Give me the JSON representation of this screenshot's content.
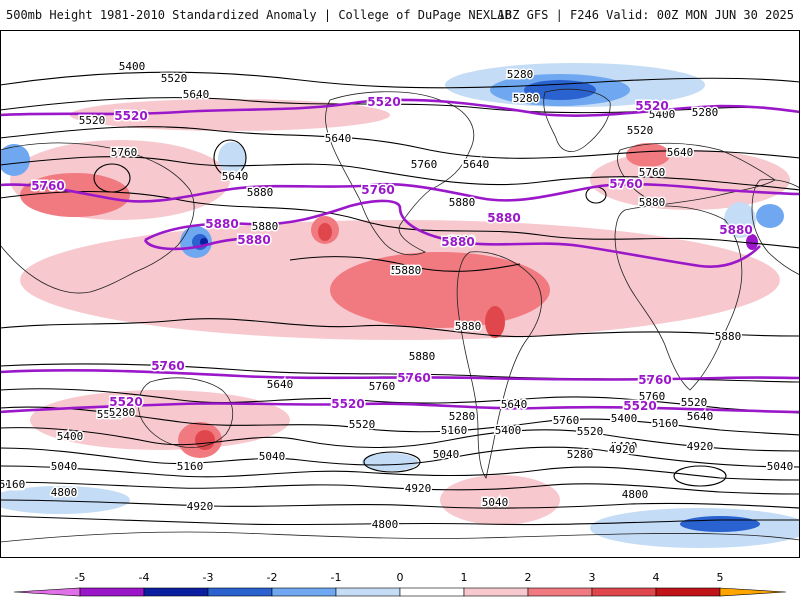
{
  "header": {
    "title": "500mb Height 1981-2010 Standardized Anomaly | College of DuPage NEXLAB",
    "run_info": "18Z GFS | F246 Valid: 00Z MON JUN 30 2025"
  },
  "colors": {
    "pos1": "#f7c9cf",
    "pos2": "#f07a80",
    "pos3": "#e0474c",
    "pos4": "#c01418",
    "pos5": "#ffa500",
    "neg1": "#c4dcf5",
    "neg2": "#6fa8f0",
    "neg3": "#2a62d0",
    "neg4": "#0a1fa0",
    "neg5": "#9a16c8",
    "highlight_contour": "#9a18c9",
    "height_contour": "#000000"
  },
  "contour_labels": [
    {
      "text": "5400"
    },
    {
      "text": "5520"
    },
    {
      "text": "5640"
    },
    {
      "text": "5520"
    },
    {
      "text": "5760"
    },
    {
      "text": "5640"
    },
    {
      "text": "5640"
    },
    {
      "text": "5880"
    },
    {
      "text": "5880"
    },
    {
      "text": "5760"
    },
    {
      "text": "5640"
    },
    {
      "text": "5880"
    },
    {
      "text": "5280"
    },
    {
      "text": "5280"
    },
    {
      "text": "5400"
    },
    {
      "text": "5280"
    },
    {
      "text": "5520"
    },
    {
      "text": "5640"
    },
    {
      "text": "5760"
    },
    {
      "text": "5880"
    },
    {
      "text": "5880"
    },
    {
      "text": "5880"
    },
    {
      "text": "5880"
    },
    {
      "text": "5880"
    },
    {
      "text": "5880"
    },
    {
      "text": "5880"
    },
    {
      "text": "5760"
    },
    {
      "text": "5640"
    },
    {
      "text": "5520"
    },
    {
      "text": "5400"
    },
    {
      "text": "5280"
    },
    {
      "text": "5160"
    },
    {
      "text": "5040"
    },
    {
      "text": "5640"
    },
    {
      "text": "5760"
    },
    {
      "text": "5400"
    },
    {
      "text": "5520"
    },
    {
      "text": "5280"
    },
    {
      "text": "5160"
    },
    {
      "text": "5040"
    },
    {
      "text": "5040"
    },
    {
      "text": "4920"
    },
    {
      "text": "4920"
    },
    {
      "text": "4800"
    },
    {
      "text": "4920"
    },
    {
      "text": "4800"
    },
    {
      "text": "5040"
    },
    {
      "text": "5400"
    },
    {
      "text": "5520"
    },
    {
      "text": "5640"
    },
    {
      "text": "5760"
    },
    {
      "text": "5520"
    },
    {
      "text": "5400"
    },
    {
      "text": "5280"
    },
    {
      "text": "5160"
    },
    {
      "text": "4920"
    },
    {
      "text": "4800"
    },
    {
      "text": "5040"
    },
    {
      "text": "4920"
    },
    {
      "text": "5160"
    }
  ],
  "highlight_labels": [
    {
      "text": "5520"
    },
    {
      "text": "5520"
    },
    {
      "text": "5520"
    },
    {
      "text": "5760"
    },
    {
      "text": "5760"
    },
    {
      "text": "5760"
    },
    {
      "text": "5880"
    },
    {
      "text": "5880"
    },
    {
      "text": "5880"
    },
    {
      "text": "5880"
    },
    {
      "text": "5880"
    },
    {
      "text": "5760"
    },
    {
      "text": "5760"
    },
    {
      "text": "5760"
    },
    {
      "text": "5520"
    },
    {
      "text": "5520"
    },
    {
      "text": "5520"
    }
  ],
  "legend": {
    "ticks": [
      "-5",
      "-4",
      "-3",
      "-2",
      "-1",
      "0",
      "1",
      "2",
      "3",
      "4",
      "5"
    ]
  }
}
